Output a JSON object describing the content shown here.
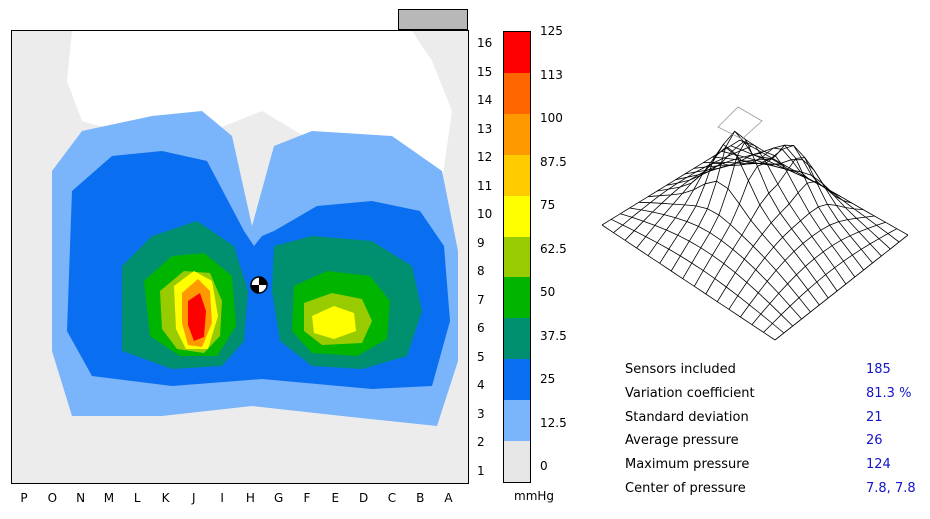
{
  "pressure_map": {
    "row_labels": [
      "16",
      "15",
      "14",
      "13",
      "12",
      "11",
      "10",
      "9",
      "8",
      "7",
      "6",
      "5",
      "4",
      "3",
      "2",
      "1"
    ],
    "column_labels": [
      "P",
      "O",
      "N",
      "M",
      "L",
      "K",
      "J",
      "I",
      "H",
      "G",
      "F",
      "E",
      "D",
      "C",
      "B",
      "A"
    ],
    "center_marker": {
      "row": 7.8,
      "column": 7.8
    }
  },
  "legend": {
    "unit": "mmHg",
    "values": [
      "125",
      "113",
      "100",
      "87.5",
      "75",
      "62.5",
      "50",
      "37.5",
      "25",
      "12.5",
      "0"
    ],
    "colors": [
      "#ff0000",
      "#ff6600",
      "#ff9900",
      "#ffcc00",
      "#ffff00",
      "#99cc00",
      "#00b400",
      "#009070",
      "#0a6ef0",
      "#7ab4fa",
      "#e6e6e6"
    ]
  },
  "stats": [
    {
      "label": "Sensors included",
      "value": "185"
    },
    {
      "label": "Variation coefficient",
      "value": "81.3 %"
    },
    {
      "label": "Standard deviation",
      "value": "21"
    },
    {
      "label": "Average pressure",
      "value": "26"
    },
    {
      "label": "Maximum pressure",
      "value": "124"
    },
    {
      "label": "Center of pressure",
      "value": "7.8, 7.8"
    }
  ]
}
